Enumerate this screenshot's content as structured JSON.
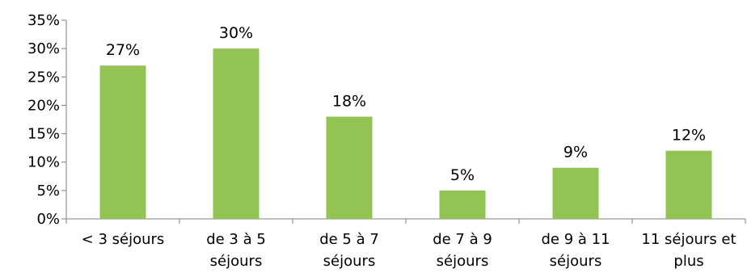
{
  "chart_data": {
    "type": "bar",
    "categories": [
      [
        "< 3 séjours"
      ],
      [
        "de 3 à  5",
        "séjours"
      ],
      [
        "de 5 à  7",
        "séjours"
      ],
      [
        "de 7 à  9",
        "séjours"
      ],
      [
        "de 9 à 11",
        "séjours"
      ],
      [
        "11 séjours et",
        "plus"
      ]
    ],
    "values": [
      27,
      30,
      18,
      5,
      9,
      12
    ],
    "value_labels": [
      "27%",
      "30%",
      "18%",
      "5%",
      "9%",
      "12%"
    ],
    "ylim": [
      0,
      35
    ],
    "yticks": [
      0,
      5,
      10,
      15,
      20,
      25,
      30,
      35
    ],
    "ytick_labels": [
      "0%",
      "5%",
      "10%",
      "15%",
      "20%",
      "25%",
      "30%",
      "35%"
    ],
    "title": "",
    "xlabel": "",
    "ylabel": "",
    "grid": false,
    "bar_color": "#92c353",
    "axis_color": "#7f7f7f"
  }
}
